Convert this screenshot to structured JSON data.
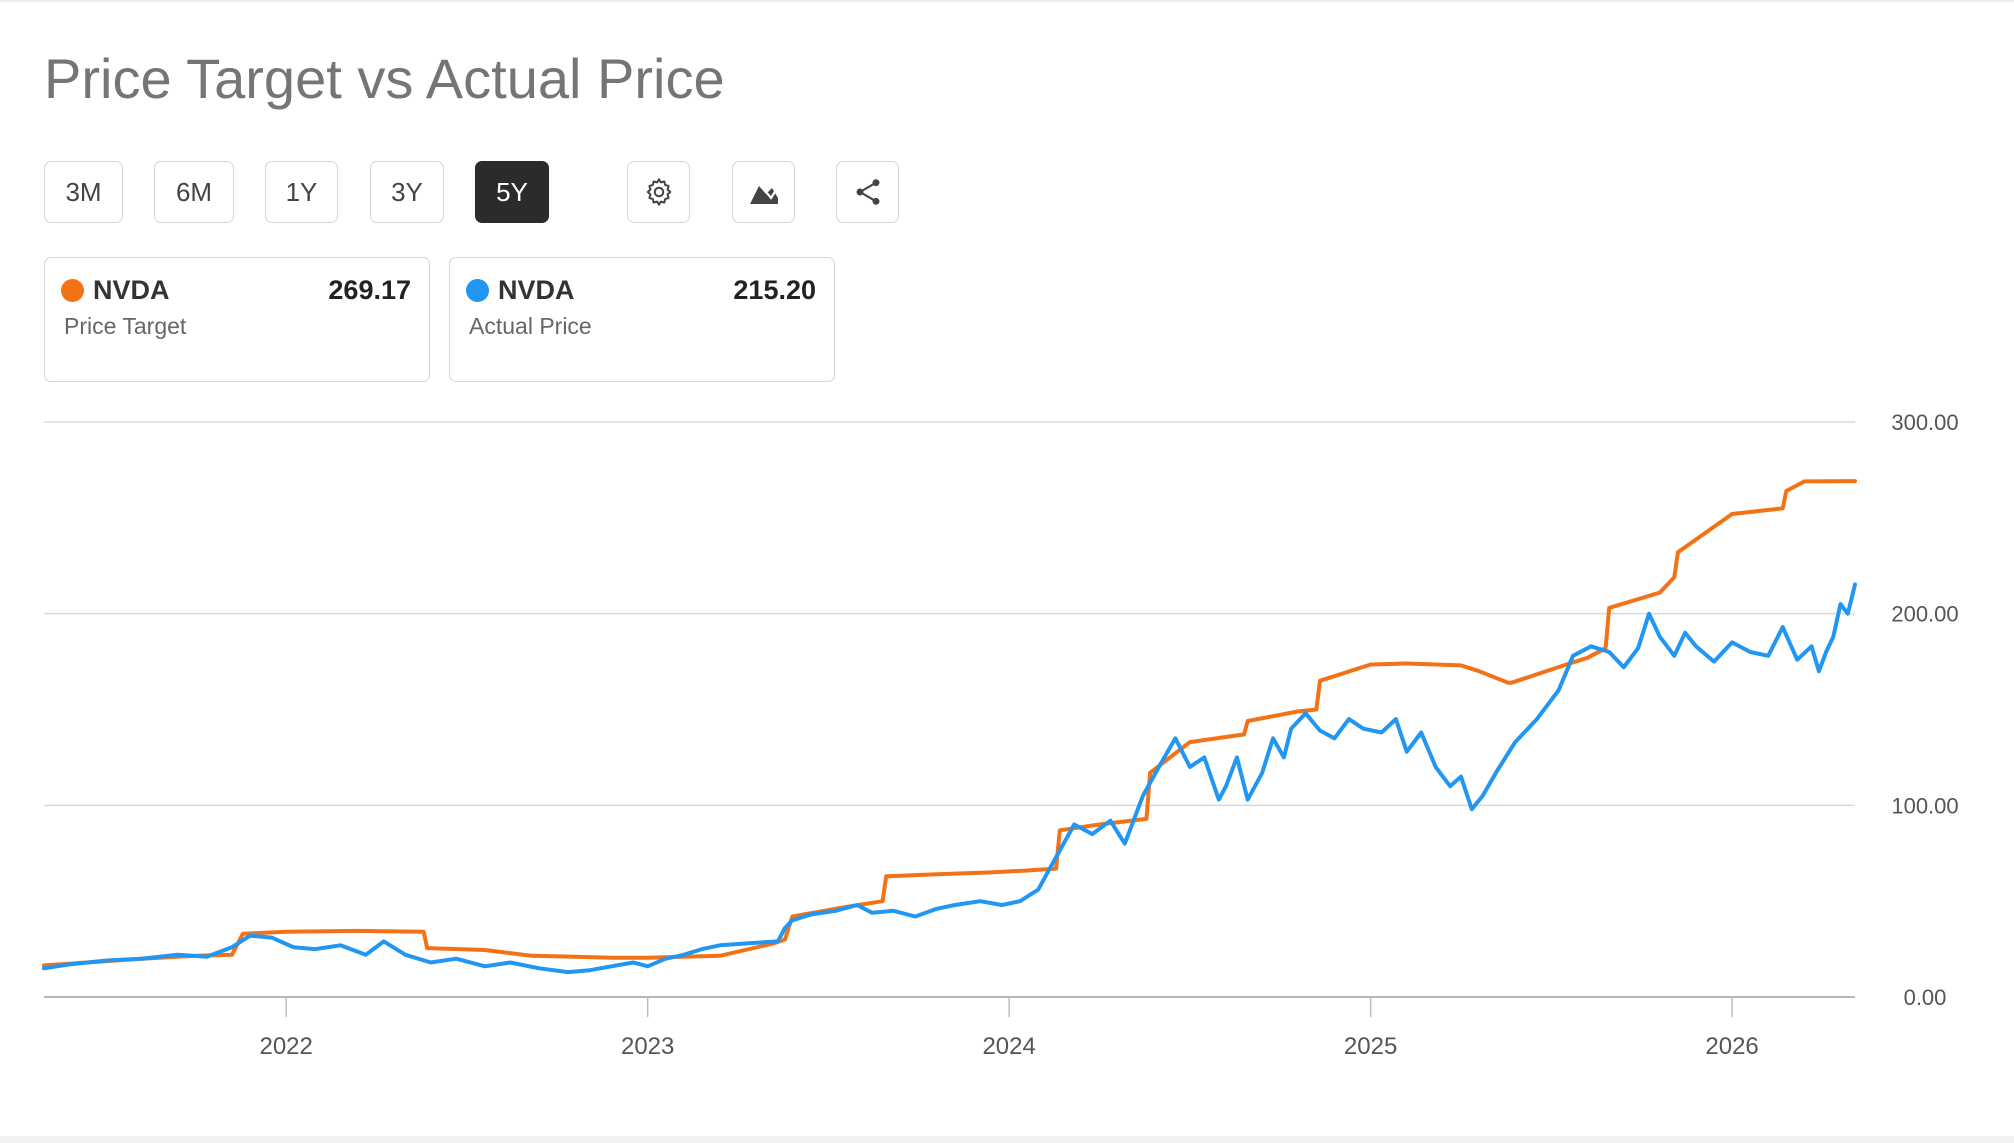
{
  "title": "Price Target vs Actual Price",
  "range_buttons": [
    {
      "label": "3M",
      "active": false
    },
    {
      "label": "6M",
      "active": false
    },
    {
      "label": "1Y",
      "active": false
    },
    {
      "label": "3Y",
      "active": false
    },
    {
      "label": "5Y",
      "active": true
    }
  ],
  "tools": {
    "settings_icon": "gear-icon",
    "chart_type_icon": "area-chart-icon",
    "share_icon": "share-icon"
  },
  "cards": [
    {
      "symbol": "NVDA",
      "value": "269.17",
      "label": "Price Target",
      "color": "#f47216"
    },
    {
      "symbol": "NVDA",
      "value": "215.20",
      "label": "Actual Price",
      "color": "#2196f3"
    }
  ],
  "chart_data": {
    "type": "line",
    "title": "",
    "xlabel": "",
    "ylabel": "",
    "xlim": [
      2021.33,
      2026.34
    ],
    "ylim": [
      0,
      300
    ],
    "x_ticks": [
      2022,
      2023,
      2024,
      2025,
      2026
    ],
    "y_ticks": [
      "300.00",
      "200.00",
      "100.00",
      "0.00"
    ],
    "grid": true,
    "series": [
      {
        "name": "Price Target",
        "color": "#f47216",
        "x": [
          2021.33,
          2021.45,
          2021.6,
          2021.75,
          2021.85,
          2021.88,
          2022.0,
          2022.2,
          2022.38,
          2022.39,
          2022.55,
          2022.68,
          2022.8,
          2022.9,
          2023.0,
          2023.2,
          2023.35,
          2023.38,
          2023.4,
          2023.55,
          2023.65,
          2023.66,
          2023.8,
          2023.95,
          2024.05,
          2024.13,
          2024.14,
          2024.25,
          2024.38,
          2024.39,
          2024.5,
          2024.65,
          2024.66,
          2024.8,
          2024.85,
          2024.86,
          2025.0,
          2025.1,
          2025.25,
          2025.3,
          2025.38,
          2025.39,
          2025.55,
          2025.6,
          2025.65,
          2025.66,
          2025.8,
          2025.84,
          2025.85,
          2026.0,
          2026.14,
          2026.15,
          2026.2,
          2026.34
        ],
        "values": [
          16.5,
          18,
          20,
          21.5,
          22,
          33,
          34,
          34.5,
          34,
          25.5,
          24.5,
          21.5,
          21,
          20.5,
          20.5,
          21.5,
          28,
          30,
          42,
          47,
          50,
          63,
          64,
          65,
          66,
          67,
          87,
          90,
          93,
          117,
          133,
          137,
          144,
          149,
          150,
          165,
          173.5,
          174,
          173,
          170,
          164,
          164,
          174,
          177,
          182,
          203,
          211,
          219,
          232,
          252,
          255,
          264,
          269,
          269.17
        ]
      },
      {
        "name": "Actual Price",
        "color": "#2196f3",
        "x": [
          2021.33,
          2021.4,
          2021.5,
          2021.6,
          2021.7,
          2021.78,
          2021.85,
          2021.9,
          2021.96,
          2022.02,
          2022.08,
          2022.15,
          2022.22,
          2022.27,
          2022.33,
          2022.4,
          2022.47,
          2022.55,
          2022.62,
          2022.7,
          2022.78,
          2022.84,
          2022.9,
          2022.96,
          2023.0,
          2023.05,
          2023.1,
          2023.15,
          2023.2,
          2023.28,
          2023.36,
          2023.38,
          2023.4,
          2023.45,
          2023.52,
          2023.58,
          2023.62,
          2023.68,
          2023.74,
          2023.8,
          2023.85,
          2023.92,
          2023.98,
          2024.03,
          2024.08,
          2024.13,
          2024.18,
          2024.23,
          2024.28,
          2024.32,
          2024.37,
          2024.42,
          2024.46,
          2024.5,
          2024.54,
          2024.58,
          2024.6,
          2024.63,
          2024.66,
          2024.7,
          2024.73,
          2024.76,
          2024.78,
          2024.82,
          2024.86,
          2024.9,
          2024.94,
          2024.98,
          2025.03,
          2025.07,
          2025.1,
          2025.14,
          2025.18,
          2025.22,
          2025.25,
          2025.28,
          2025.31,
          2025.35,
          2025.4,
          2025.46,
          2025.52,
          2025.56,
          2025.61,
          2025.66,
          2025.7,
          2025.74,
          2025.77,
          2025.8,
          2025.84,
          2025.87,
          2025.9,
          2025.95,
          2026.0,
          2026.05,
          2026.1,
          2026.14,
          2026.18,
          2026.22,
          2026.24,
          2026.26,
          2026.28,
          2026.3,
          2026.32,
          2026.34
        ],
        "values": [
          15,
          17,
          19,
          20,
          22,
          21,
          26,
          32,
          31,
          26,
          25,
          27,
          22,
          29,
          22,
          18,
          20,
          16,
          18,
          15,
          13,
          14,
          16,
          18,
          16,
          20,
          22,
          25,
          27,
          28,
          29,
          36,
          40,
          43,
          45,
          48,
          44,
          45,
          42,
          46,
          48,
          50,
          48,
          50,
          56,
          73,
          90,
          85,
          92,
          80,
          105,
          122,
          135,
          120,
          125,
          103,
          110,
          125,
          103,
          117,
          135,
          125,
          140,
          148,
          139,
          135,
          145,
          140,
          138,
          145,
          128,
          138,
          120,
          110,
          115,
          98,
          105,
          118,
          133,
          145,
          160,
          178,
          183,
          180,
          172,
          182,
          200,
          188,
          178,
          190,
          183,
          175,
          185,
          180,
          178,
          193,
          176,
          183,
          170,
          180,
          188,
          205,
          200,
          215.2
        ]
      }
    ]
  }
}
